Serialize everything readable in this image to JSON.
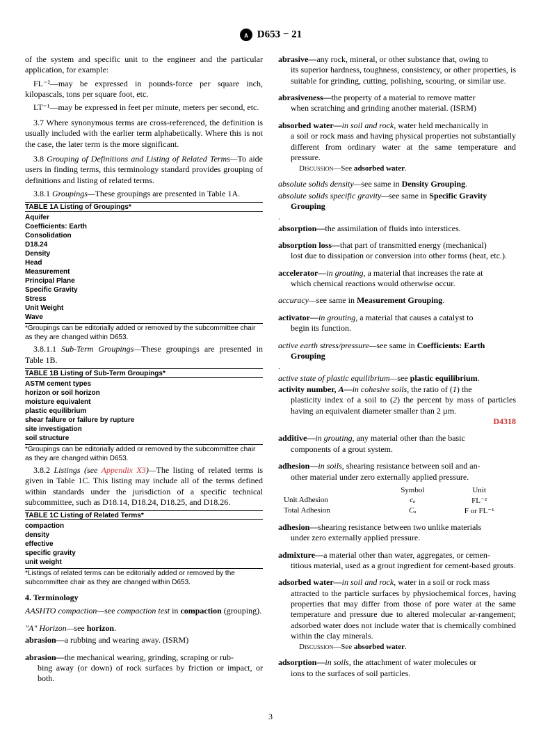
{
  "header": {
    "designation": "D653 − 21"
  },
  "left": {
    "intro1": "of the system and specific unit to the engineer and the particular application, for example:",
    "fl2": "FL⁻²—may be expressed in pounds-force per square inch, kilopascals, tons per square foot, etc.",
    "lt1": "LT⁻¹—may be expressed in feet per minute, meters per second, etc.",
    "p37": "3.7 Where synonymous terms are cross-referenced, the definition is usually included with the earlier term alphabetically. Where this is not the case, the later term is the more significant.",
    "p38_num": "3.8 ",
    "p38_title": "Grouping of Definitions and Listing of Related Terms—",
    "p38_body": "To aide users in finding terms, this terminology standard provides grouping of definitions and listing of related terms.",
    "p381_num": "3.8.1 ",
    "p381_title": "Groupings—",
    "p381_body": "These groupings are presented in Table 1A.",
    "table1a_title": "TABLE 1A Listing of Groupings*",
    "table1a_items": [
      "Aquifer",
      "Coefficients: Earth",
      "Consolidation",
      "D18.24",
      "Density",
      "Head",
      "Measurement",
      "Principal Plane",
      "Specific Gravity",
      "Stress",
      "Unit Weight",
      "Wave"
    ],
    "table1a_note": "*Groupings can be editorially added or removed by the subcommittee chair as they are changed within D653.",
    "p3811_num": "3.8.1.1 ",
    "p3811_title": "Sub-Term Groupings—",
    "p3811_body": "These groupings are presented in Table 1B.",
    "table1b_title": "TABLE 1B Listing of Sub-Term Groupings*",
    "table1b_items": [
      "ASTM cement types",
      "horizon or soil horizon",
      "moisture equivalent",
      "plastic equilibrium",
      "shear failure or failure by rupture",
      "site investigation",
      "soil structure"
    ],
    "table1b_note": "*Groupings can be editorially added or removed by the subcommittee chair as they are changed within D653.",
    "p382_num": "3.8.2 ",
    "p382_title": "Listings (see ",
    "p382_link": "Appendix X3",
    "p382_after": ")—",
    "p382_body": "The listing of related terms is given in Table 1C. This listing may include all of the terms defined within standards under the jurisdiction of a specific technical subcommittee, such as D18.14, D18.24, D18.25, and D18.26.",
    "table1c_title": "TABLE 1C Listing of Related Terms*",
    "table1c_items": [
      "compaction",
      "density",
      "effective",
      "specific gravity",
      "unit weight"
    ],
    "table1c_note": "*Listings of related terms can be editorially added or removed by the subcommittee chair as they are changed within D653.",
    "sec4": "4. Terminology",
    "aashto_term": "AASHTO compaction—",
    "aashto_body1": "see ",
    "aashto_ital": "compaction test",
    "aashto_body2": " in ",
    "aashto_bold": "compaction",
    "aashto_body3": " (grouping).",
    "ahoriz_term": "\"A\" Horizon—",
    "ahoriz_see": "see ",
    "ahoriz_bold": "horizon",
    "abrasion1_term": "abrasion—",
    "abrasion1_body": "a rubbing and wearing away. (ISRM)",
    "abrasion2_term": "abrasion—",
    "abrasion2_body": "the mechanical wearing, grinding, scraping or rubbing away (or down) of rock surfaces by friction or impact, or both."
  },
  "right": {
    "abrasive_term": "abrasive—",
    "abrasive_body": "any rock, mineral, or other substance that, owing to its superior hardness, toughness, consistency, or other properties, is suitable for grinding, cutting, polishing, scouring, or similar use.",
    "abrasiveness_term": "abrasiveness—",
    "abrasiveness_body": "the property of a material to remove matter when scratching and grinding another material. (ISRM)",
    "absorbed_term": "absorbed water—",
    "absorbed_ital": "in soil and rock",
    "absorbed_body": ", water held mechanically in a soil or rock mass and having physical properties not substantially different from ordinary water at the same temperature and pressure.",
    "absorbed_disc_label": "Discussion—",
    "absorbed_disc": "See ",
    "absorbed_disc_bold": "adsorbed water",
    "asd_term": "absolute solids density—",
    "asd_see": "see same in ",
    "asd_bold": "Density Grouping",
    "assg_term": "absolute solids specific gravity—",
    "assg_see": "see same in ",
    "assg_bold": "Specific Gravity Grouping",
    "absorption_term": "absorption—",
    "absorption_body": "the assimilation of fluids into interstices.",
    "absloss_term": "absorption loss—",
    "absloss_body": "that part of transmitted energy (mechanical) lost due to dissipation or conversion into other forms (heat, etc.).",
    "accel_term": "accelerator—",
    "accel_ital": "in grouting,",
    "accel_body": " a material that increases the rate at which chemical reactions would otherwise occur.",
    "accuracy_term": "accuracy—",
    "accuracy_see": "see same in ",
    "accuracy_bold": "Measurement Grouping",
    "activator_term": "activator—",
    "activator_ital": "in grouting,",
    "activator_body": " a material that causes a catalyst to begin its function.",
    "aes_term": "active earth stress/pressure—",
    "aes_see": "see same in ",
    "aes_bold": "Coefficients: Earth Grouping",
    "aspe_term": "active state of plastic equilibrium—",
    "aspe_see": "see ",
    "aspe_bold": "plastic equilibrium",
    "activity_term": "activity number, ",
    "activity_sym": "A—",
    "activity_ital": "in cohesive soils",
    "activity_body_a": ", the ratio of (",
    "activity_1": "1",
    "activity_body_b": ") the plasticity index of a soil to (",
    "activity_2": "2",
    "activity_body_c": ") the percent by mass of particles having an equivalent diameter smaller than 2 µm.",
    "activity_link": "D4318",
    "additive_term": "additive—",
    "additive_ital": "in grouting",
    "additive_body": ", any material other than the basic components of a grout system.",
    "adhesion1_term": "adhesion—",
    "adhesion1_ital": "in soils",
    "adhesion1_body": ", shearing resistance between soil and another material under zero externally applied pressure.",
    "adh_h1": "Symbol",
    "adh_h2": "Unit",
    "adh_r1_label": "Unit Adhesion",
    "adh_r1_sym": "cₐ",
    "adh_r1_unit": "FL⁻²",
    "adh_r2_label": "Total Adhesion",
    "adh_r2_sym": "Cₐ",
    "adh_r2_unit": "F or FL⁻¹",
    "adhesion2_term": "adhesion—",
    "adhesion2_body": "shearing resistance between two unlike materials under zero externally applied pressure.",
    "admixture_term": "admixture—",
    "admixture_body": "a material other than water, aggregates, or cementitious material, used as a grout ingredient for cement-based grouts.",
    "adsorbed_term": "adsorbed water—",
    "adsorbed_ital": "in soil and rock",
    "adsorbed_body": ", water in a soil or rock mass attracted to the particle surfaces by physiochemical forces, having properties that may differ from those of pore water at the same temperature and pressure due to altered molecular ar-rangement; adsorbed water does not include water that is chemically combined within the clay minerals.",
    "adsorbed_disc_label": "Discussion—",
    "adsorbed_disc": "See ",
    "adsorbed_disc_bold": "absorbed water",
    "adsorption_term": "adsorption—",
    "adsorption_ital": "in soils",
    "adsorption_body": ", the attachment of water molecules or ions to the surfaces of soil particles."
  },
  "pagenum": "3"
}
